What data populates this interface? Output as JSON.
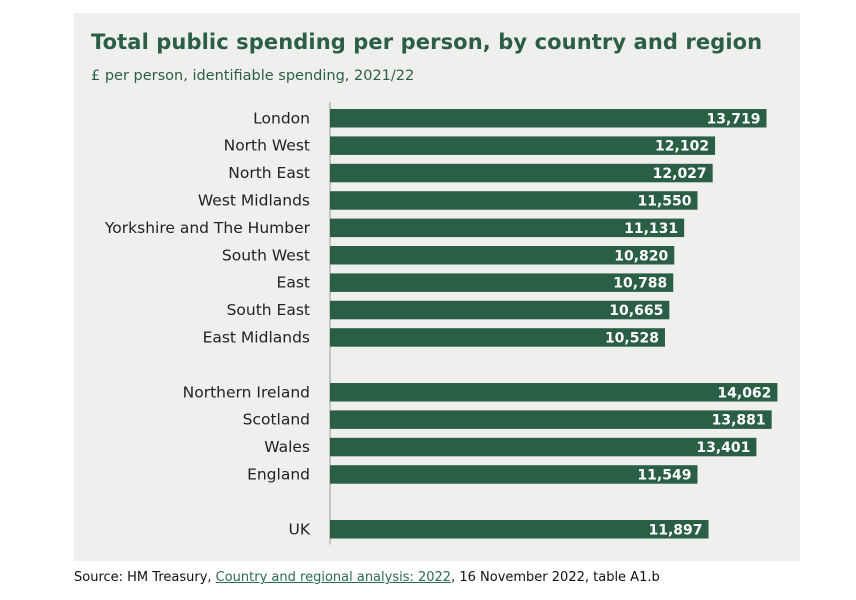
{
  "chart_data": {
    "type": "bar",
    "orientation": "horizontal",
    "title": "Total public spending per person, by country and region",
    "subtitle": "£ per person, identifiable spending, 2021/22",
    "bar_color": "#2b5f45",
    "background_color": "#efefed",
    "value_label_color": "#ffffff",
    "xlim": [
      0,
      14300
    ],
    "groups": [
      {
        "categories": [
          "London",
          "North West",
          "North East",
          "West Midlands",
          "Yorkshire and The Humber",
          "South West",
          "East",
          "South East",
          "East Midlands"
        ],
        "values": [
          13719,
          12102,
          12027,
          11550,
          11131,
          10820,
          10788,
          10665,
          10528
        ],
        "labels": [
          "13,719",
          "12,102",
          "12,027",
          "11,550",
          "11,131",
          "10,820",
          "10,788",
          "10,665",
          "10,528"
        ]
      },
      {
        "categories": [
          "Northern Ireland",
          "Scotland",
          "Wales",
          "England"
        ],
        "values": [
          14062,
          13881,
          13401,
          11549
        ],
        "labels": [
          "14,062",
          "13,881",
          "13,401",
          "11,549"
        ]
      },
      {
        "categories": [
          "UK"
        ],
        "values": [
          11897
        ],
        "labels": [
          "11,897"
        ]
      }
    ]
  },
  "source": {
    "prefix": "Source: HM Treasury, ",
    "link_text": "Country and regional analysis: 2022",
    "suffix": ", 16 November 2022, table A1.b"
  }
}
